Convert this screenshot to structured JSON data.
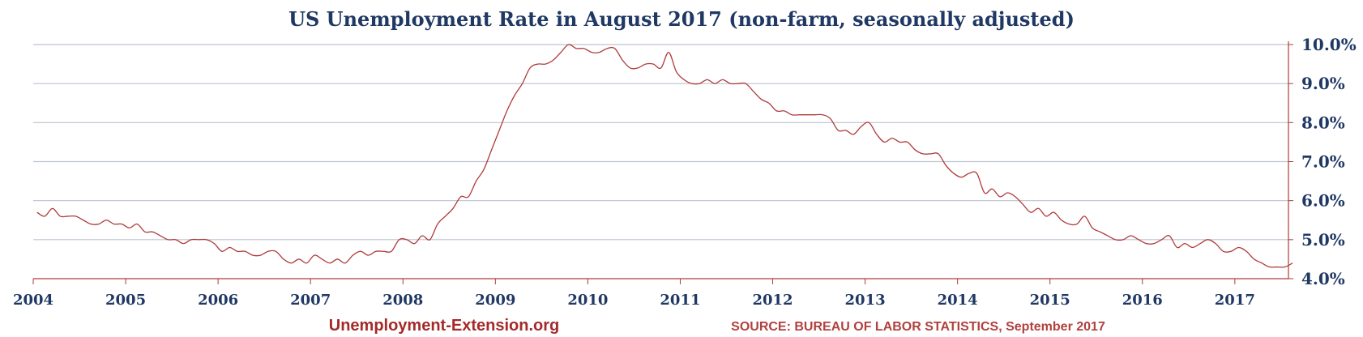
{
  "chart_data": {
    "type": "line",
    "title": "US Unemployment Rate in August 2017 (non-farm, seasonally adjusted)",
    "xlabel": "",
    "ylabel": "",
    "x_tick_labels": [
      "2004",
      "2005",
      "2006",
      "2007",
      "2008",
      "2009",
      "2010",
      "2011",
      "2012",
      "2013",
      "2014",
      "2015",
      "2016",
      "2017"
    ],
    "y_tick_labels": [
      "4.0%",
      "5.0%",
      "6.0%",
      "7.0%",
      "8.0%",
      "9.0%",
      "10.0%"
    ],
    "xlim": [
      2004.0,
      2017.58
    ],
    "ylim": [
      4.0,
      10.0
    ],
    "grid": true,
    "y_axis_side": "right",
    "line_color": "#b03a3a",
    "grid_color": "#bcc3d0",
    "text_color": "#1f3864",
    "series": [
      {
        "name": "Unemployment rate",
        "start_year": 2004,
        "start_month": 1,
        "values": [
          5.7,
          5.6,
          5.8,
          5.6,
          5.6,
          5.6,
          5.5,
          5.4,
          5.4,
          5.5,
          5.4,
          5.4,
          5.3,
          5.4,
          5.2,
          5.2,
          5.1,
          5.0,
          5.0,
          4.9,
          5.0,
          5.0,
          5.0,
          4.9,
          4.7,
          4.8,
          4.7,
          4.7,
          4.6,
          4.6,
          4.7,
          4.7,
          4.5,
          4.4,
          4.5,
          4.4,
          4.6,
          4.5,
          4.4,
          4.5,
          4.4,
          4.6,
          4.7,
          4.6,
          4.7,
          4.7,
          4.7,
          5.0,
          5.0,
          4.9,
          5.1,
          5.0,
          5.4,
          5.6,
          5.8,
          6.1,
          6.1,
          6.5,
          6.8,
          7.3,
          7.8,
          8.3,
          8.7,
          9.0,
          9.4,
          9.5,
          9.5,
          9.6,
          9.8,
          10.0,
          9.9,
          9.9,
          9.8,
          9.8,
          9.9,
          9.9,
          9.6,
          9.4,
          9.4,
          9.5,
          9.5,
          9.4,
          9.8,
          9.3,
          9.1,
          9.0,
          9.0,
          9.1,
          9.0,
          9.1,
          9.0,
          9.0,
          9.0,
          8.8,
          8.6,
          8.5,
          8.3,
          8.3,
          8.2,
          8.2,
          8.2,
          8.2,
          8.2,
          8.1,
          7.8,
          7.8,
          7.7,
          7.9,
          8.0,
          7.7,
          7.5,
          7.6,
          7.5,
          7.5,
          7.3,
          7.2,
          7.2,
          7.2,
          6.9,
          6.7,
          6.6,
          6.7,
          6.7,
          6.2,
          6.3,
          6.1,
          6.2,
          6.1,
          5.9,
          5.7,
          5.8,
          5.6,
          5.7,
          5.5,
          5.4,
          5.4,
          5.6,
          5.3,
          5.2,
          5.1,
          5.0,
          5.0,
          5.1,
          5.0,
          4.9,
          4.9,
          5.0,
          5.1,
          4.8,
          4.9,
          4.8,
          4.9,
          5.0,
          4.9,
          4.7,
          4.7,
          4.8,
          4.7,
          4.5,
          4.4,
          4.3,
          4.3,
          4.3,
          4.4
        ]
      }
    ]
  },
  "footer": {
    "site": "Unemployment-Extension.org",
    "source": "SOURCE: BUREAU OF LABOR STATISTICS, September 2017"
  }
}
